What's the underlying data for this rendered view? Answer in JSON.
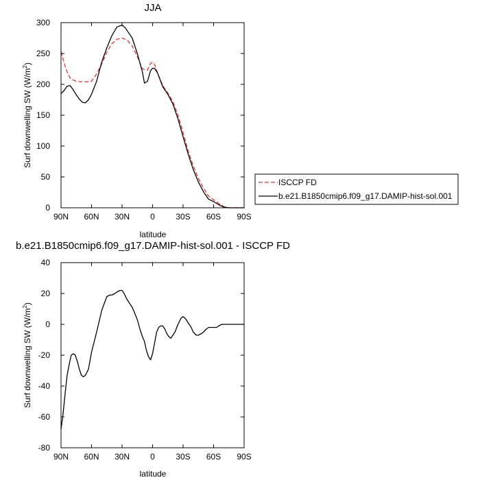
{
  "chart_data": [
    {
      "type": "line",
      "title": "JJA",
      "xlabel": "latitude",
      "ylabel": "Surf downwelling SW (W/m",
      "ylabel_sup": "2",
      "ylabel_end": ")",
      "xlim": [
        90,
        -90
      ],
      "ylim": [
        0,
        300
      ],
      "xticks": [
        90,
        60,
        30,
        0,
        -30,
        -60,
        -90
      ],
      "xtick_labels": [
        "90N",
        "60N",
        "30N",
        "0",
        "30S",
        "60S",
        "90S"
      ],
      "yticks": [
        0,
        50,
        100,
        150,
        200,
        250,
        300
      ],
      "ytick_labels": [
        "0",
        "50",
        "100",
        "150",
        "200",
        "250",
        "300"
      ],
      "legend": "outside-right",
      "series": [
        {
          "name": "ISCCP FD",
          "color": "#e8302c",
          "dash": "dashed",
          "x": [
            90,
            87,
            84,
            81,
            78,
            75,
            70,
            65,
            60,
            55,
            50,
            45,
            40,
            35,
            30,
            25,
            20,
            15,
            10,
            5,
            2,
            0,
            -2,
            -5,
            -10,
            -15,
            -20,
            -25,
            -30,
            -35,
            -40,
            -45,
            -50,
            -55,
            -60,
            -65,
            -70,
            -75,
            -80,
            -85,
            -90
          ],
          "y": [
            253,
            235,
            220,
            210,
            207,
            205,
            204,
            204,
            205,
            217,
            233,
            252,
            266,
            273,
            275,
            272,
            262,
            245,
            225,
            223,
            234,
            236,
            232,
            218,
            198,
            186,
            172,
            150,
            122,
            92,
            68,
            48,
            32,
            19,
            13,
            7,
            2,
            0,
            0,
            0,
            0
          ]
        },
        {
          "name": "b.e21.B1850cmip6.f09_g17.DAMIP-hist-sol.001",
          "color": "#000000",
          "dash": "solid",
          "x": [
            90,
            87,
            84,
            81,
            78,
            75,
            72,
            69,
            66,
            63,
            60,
            55,
            50,
            45,
            40,
            35,
            30,
            27,
            25,
            20,
            15,
            10,
            8,
            5,
            2,
            0,
            -2,
            -5,
            -10,
            -15,
            -20,
            -25,
            -30,
            -35,
            -40,
            -45,
            -50,
            -55,
            -60,
            -65,
            -70,
            -75,
            -80,
            -85,
            -90
          ],
          "y": [
            185,
            190,
            197,
            198,
            191,
            183,
            176,
            171,
            170,
            175,
            184,
            205,
            236,
            259,
            279,
            293,
            296,
            292,
            287,
            275,
            250,
            220,
            202,
            205,
            222,
            226,
            226,
            218,
            196,
            184,
            168,
            144,
            115,
            87,
            62,
            42,
            26,
            14,
            10,
            5,
            1,
            0,
            0,
            0,
            0
          ]
        }
      ]
    },
    {
      "type": "line",
      "title": "b.e21.B1850cmip6.f09_g17.DAMIP-hist-sol.001 - ISCCP FD",
      "xlabel": "latitude",
      "ylabel": "Surf downwelling SW (W/m",
      "ylabel_sup": "2",
      "ylabel_end": ")",
      "xlim": [
        90,
        -90
      ],
      "ylim": [
        -80,
        40
      ],
      "xticks": [
        90,
        60,
        30,
        0,
        -30,
        -60,
        -90
      ],
      "xtick_labels": [
        "90N",
        "60N",
        "30N",
        "0",
        "30S",
        "60S",
        "90S"
      ],
      "yticks": [
        -80,
        -60,
        -40,
        -20,
        0,
        20,
        40
      ],
      "ytick_labels": [
        "-80",
        "-60",
        "-40",
        "-20",
        "0",
        "20",
        "40"
      ],
      "series": [
        {
          "color": "#000000",
          "dash": "solid",
          "x": [
            90,
            88,
            86,
            84,
            82,
            80,
            78,
            76,
            74,
            72,
            70,
            68,
            66,
            63,
            60,
            55,
            50,
            45,
            42,
            40,
            37,
            35,
            32,
            30,
            28,
            25,
            22,
            20,
            18,
            15,
            12,
            10,
            8,
            6,
            4,
            2,
            0,
            -2,
            -4,
            -6,
            -8,
            -10,
            -12,
            -14,
            -16,
            -18,
            -20,
            -22,
            -25,
            -28,
            -30,
            -32,
            -35,
            -38,
            -40,
            -43,
            -45,
            -48,
            -50,
            -53,
            -55,
            -58,
            -60,
            -63,
            -65,
            -68,
            -70,
            -75,
            -80,
            -85,
            -90
          ],
          "y": [
            -68,
            -58,
            -45,
            -33,
            -26,
            -20,
            -19,
            -20,
            -24,
            -29,
            -33,
            -34,
            -33,
            -29,
            -18,
            -5,
            9,
            18,
            19,
            19,
            20,
            21,
            22,
            22,
            20,
            16,
            13,
            11,
            8,
            3,
            -4,
            -8,
            -11,
            -17,
            -21,
            -23,
            -19,
            -12,
            -5,
            -2,
            -1,
            -1,
            -3,
            -6,
            -8,
            -9,
            -7,
            -5,
            0,
            4,
            5,
            4,
            1,
            -2,
            -5,
            -7,
            -7,
            -6,
            -5,
            -3,
            -2,
            -2,
            -2,
            -2,
            -1,
            0,
            0,
            0,
            0,
            0,
            0
          ]
        }
      ]
    }
  ]
}
